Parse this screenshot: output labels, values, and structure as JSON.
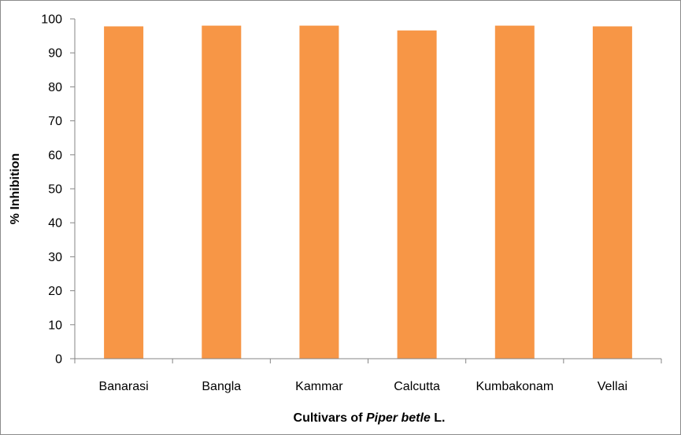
{
  "chart_data": {
    "type": "bar",
    "categories": [
      "Banarasi",
      "Bangla",
      "Kammar",
      "Calcutta",
      "Kumbakonam",
      "Vellai"
    ],
    "values": [
      97.8,
      98.0,
      98.0,
      96.6,
      98.0,
      97.8
    ],
    "xlabel_prefix": "Cultivars of ",
    "xlabel_italic": "Piper betle",
    "xlabel_suffix": " L.",
    "ylabel": "% Inhibition",
    "ylim": [
      0,
      100
    ],
    "yticks": [
      0,
      10,
      20,
      30,
      40,
      50,
      60,
      70,
      80,
      90,
      100
    ],
    "grid": false,
    "bar_color": "#F79646",
    "axis_color": "#868686"
  }
}
